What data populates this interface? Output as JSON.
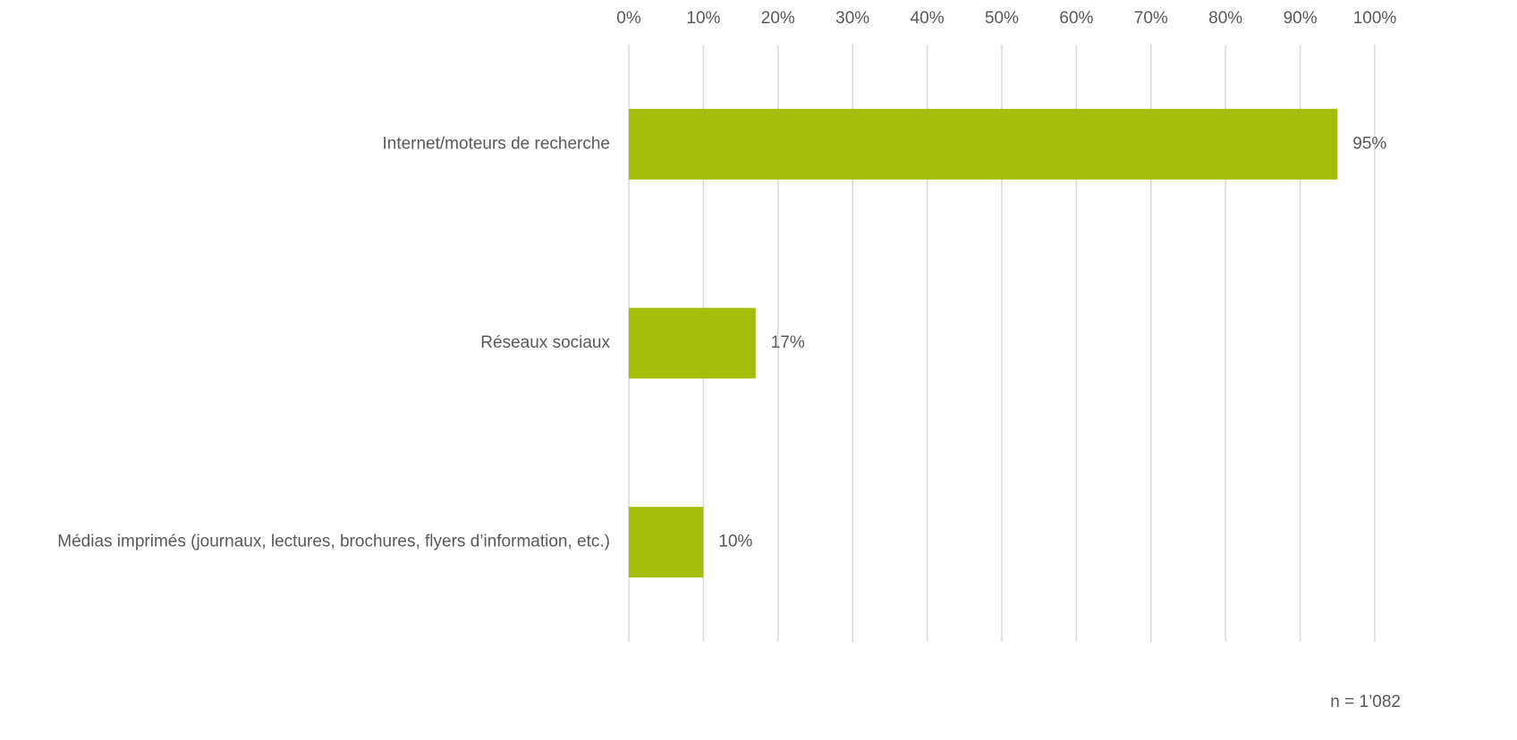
{
  "chart_data": {
    "type": "bar",
    "orientation": "horizontal",
    "categories": [
      "Internet/moteurs de recherche",
      "Réseaux sociaux",
      "Médias imprimés (journaux, lectures, brochures, flyers d’information, etc.)"
    ],
    "values": [
      95,
      17,
      10
    ],
    "value_labels": [
      "95%",
      "17%",
      "10%"
    ],
    "color": "#a4bd0a",
    "xlim": [
      0,
      100
    ],
    "xticks": [
      {
        "value": 0,
        "label": "0%"
      },
      {
        "value": 10,
        "label": "10%"
      },
      {
        "value": 20,
        "label": "20%"
      },
      {
        "value": 30,
        "label": "30%"
      },
      {
        "value": 40,
        "label": "40%"
      },
      {
        "value": 50,
        "label": "50%"
      },
      {
        "value": 60,
        "label": "60%"
      },
      {
        "value": 70,
        "label": "70%"
      },
      {
        "value": 80,
        "label": "80%"
      },
      {
        "value": 90,
        "label": "90%"
      },
      {
        "value": 100,
        "label": "100%"
      }
    ],
    "grid": true,
    "annotation": "n = 1’082"
  }
}
